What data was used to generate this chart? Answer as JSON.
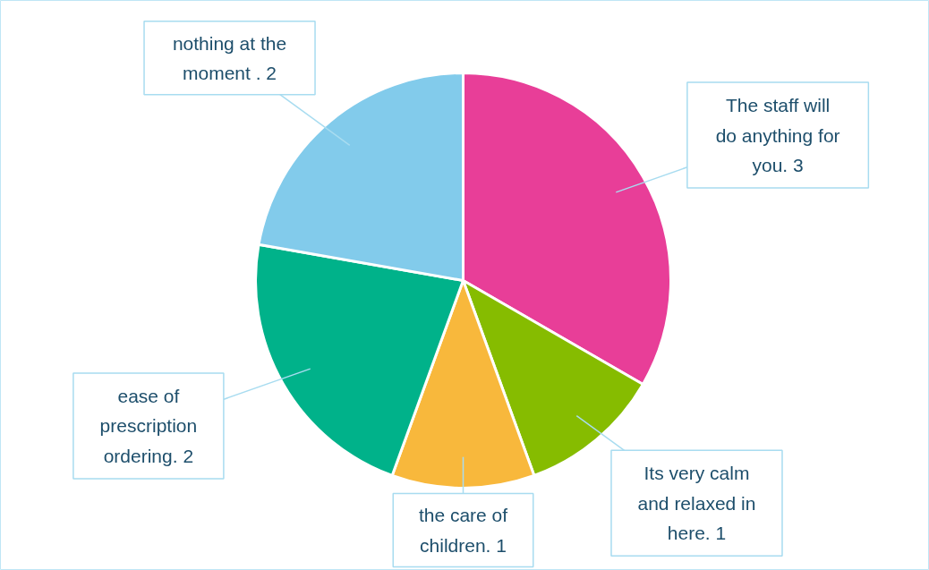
{
  "chart_data": {
    "type": "pie",
    "categories": [
      "The staff will do anything for you. 3",
      "Its very calm and relaxed in here. 1",
      "the care of children. 1",
      "ease of prescription ordering. 2",
      "nothing at the moment . 2"
    ],
    "values": [
      3,
      1,
      1,
      2,
      2
    ],
    "colors": [
      "#e83e98",
      "#86bc00",
      "#f8b83c",
      "#00b28a",
      "#82cbeb"
    ]
  }
}
